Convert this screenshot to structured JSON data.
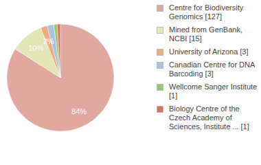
{
  "chart_data": {
    "type": "pie",
    "categories": [
      "Centre for Biodiversity Genomics [127]",
      "Mined from GenBank, NCBI [15]",
      "University of Arizona [3]",
      "Canadian Centre for DNA Barcoding [3]",
      "Wellcome Sanger Institute [1]",
      "Biology Centre of the Czech Academy of Sciences, Institute ... [1]"
    ],
    "values": [
      84,
      10,
      2,
      2,
      1,
      1
    ],
    "value_labels": [
      "84%",
      "10%",
      "2%",
      null,
      null,
      null
    ],
    "colors": [
      "#e0a89f",
      "#e2e7b5",
      "#f0aa7c",
      "#a9c3e2",
      "#93c873",
      "#d9745d"
    ],
    "data_labels": true,
    "legend": "right"
  }
}
